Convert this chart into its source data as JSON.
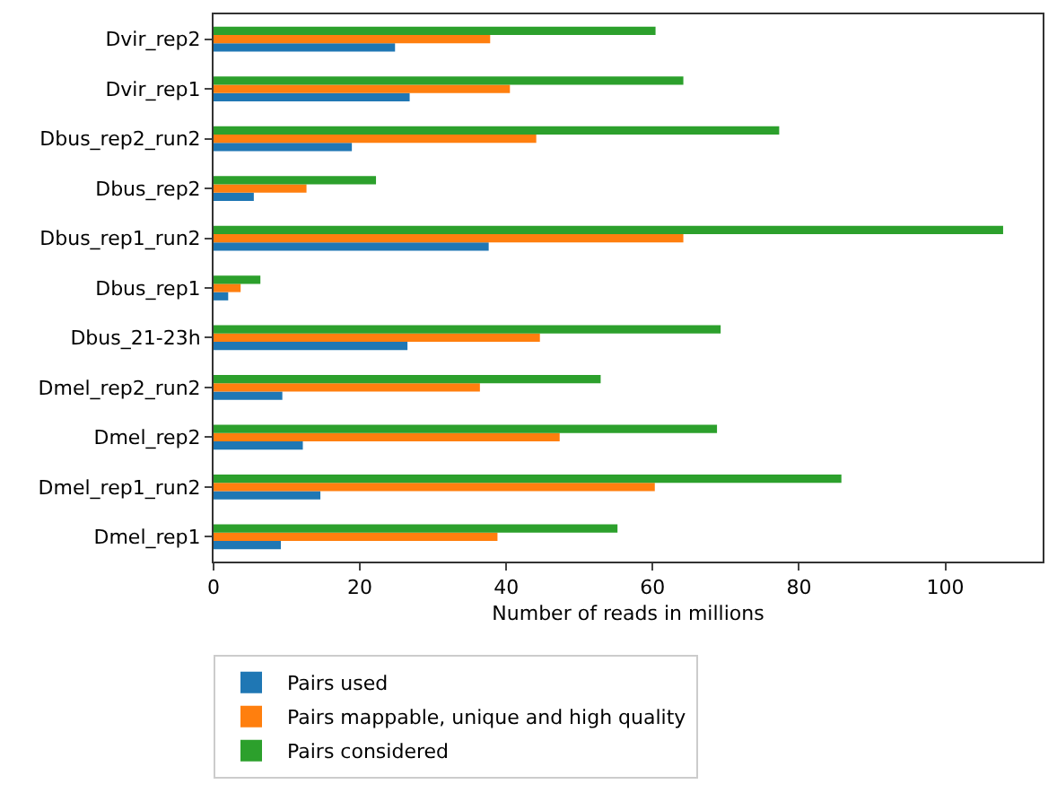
{
  "chart_data": {
    "type": "bar",
    "orientation": "horizontal",
    "xlabel": "Number of reads in millions",
    "categories": [
      "Dvir_rep2",
      "Dvir_rep1",
      "Dbus_rep2_run2",
      "Dbus_rep2",
      "Dbus_rep1_run2",
      "Dbus_rep1",
      "Dbus_21-23h",
      "Dmel_rep2_run2",
      "Dmel_rep2",
      "Dmel_rep1_run2",
      "Dmel_rep1"
    ],
    "series": [
      {
        "name": "Pairs used",
        "color": "#1f77b4",
        "values": [
          24.8,
          26.8,
          18.9,
          5.5,
          37.6,
          2.0,
          26.5,
          9.4,
          12.2,
          14.6,
          9.2
        ]
      },
      {
        "name": "Pairs mappable, unique and high quality",
        "color": "#ff7f0e",
        "values": [
          37.8,
          40.5,
          44.1,
          12.7,
          64.2,
          3.7,
          44.6,
          36.4,
          47.3,
          60.3,
          38.8
        ]
      },
      {
        "name": "Pairs considered",
        "color": "#2ca02c",
        "values": [
          60.4,
          64.2,
          77.3,
          22.2,
          107.9,
          6.4,
          69.3,
          52.9,
          68.8,
          85.8,
          55.2
        ]
      }
    ],
    "xlim": [
      0,
      113.3
    ],
    "xticks": [
      0,
      20,
      40,
      60,
      80,
      100
    ],
    "legend": "bottom"
  }
}
